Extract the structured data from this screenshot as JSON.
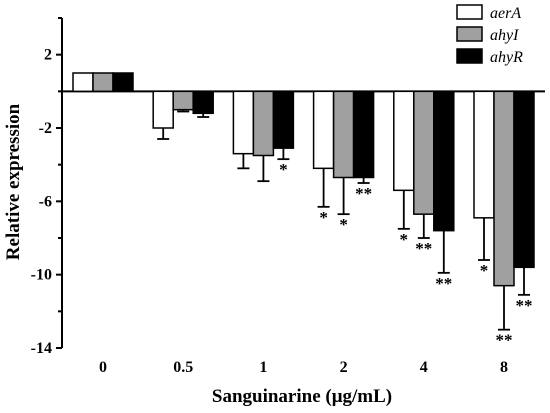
{
  "chart_data": {
    "type": "bar",
    "title": "",
    "xlabel": "Sanguinarine (μg/mL)",
    "ylabel": "Relative expression",
    "ylim": [
      -14,
      4
    ],
    "yticks": [
      2,
      -2,
      -6,
      -10,
      -14
    ],
    "categories": [
      "0",
      "0.5",
      "1",
      "2",
      "4",
      "8"
    ],
    "series": [
      {
        "name": "aerA",
        "color": "#ffffff",
        "values": [
          1,
          -2,
          -3.4,
          -4.2,
          -5.4,
          -6.9
        ],
        "errors": [
          0,
          0.6,
          0.8,
          2.1,
          2.1,
          2.3
        ],
        "significance": [
          "",
          "",
          "",
          "*",
          "*",
          "*"
        ]
      },
      {
        "name": "ahyI",
        "color": "#a0a0a0",
        "values": [
          1,
          -1,
          -3.5,
          -4.7,
          -6.7,
          -10.6
        ],
        "errors": [
          0,
          0.1,
          1.4,
          2.0,
          1.3,
          2.4
        ],
        "significance": [
          "",
          "",
          "",
          "*",
          "**",
          "**"
        ]
      },
      {
        "name": "ahyR",
        "color": "#000000",
        "values": [
          1,
          -1.2,
          -3.1,
          -4.7,
          -7.6,
          -9.6
        ],
        "errors": [
          0,
          0.2,
          0.6,
          0.3,
          2.3,
          1.5
        ],
        "significance": [
          "",
          "",
          "*",
          "**",
          "**",
          "**"
        ]
      }
    ],
    "legend_position": "top-right",
    "grid": false
  }
}
